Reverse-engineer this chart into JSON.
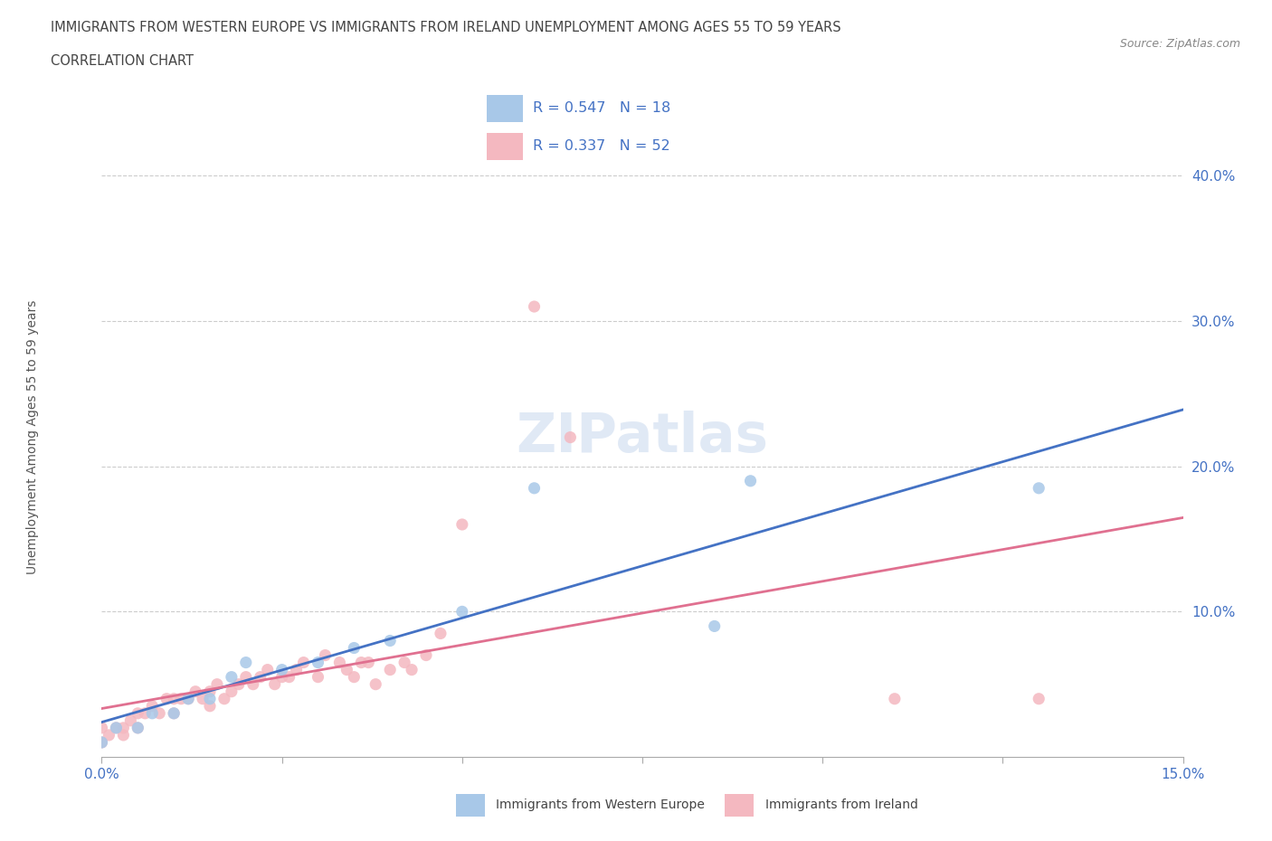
{
  "title_line1": "IMMIGRANTS FROM WESTERN EUROPE VS IMMIGRANTS FROM IRELAND UNEMPLOYMENT AMONG AGES 55 TO 59 YEARS",
  "title_line2": "CORRELATION CHART",
  "source": "Source: ZipAtlas.com",
  "ylabel": "Unemployment Among Ages 55 to 59 years",
  "xlim": [
    0.0,
    0.15
  ],
  "ylim": [
    0.0,
    0.44
  ],
  "xticks": [
    0.0,
    0.025,
    0.05,
    0.075,
    0.1,
    0.125,
    0.15
  ],
  "xtick_labels": [
    "0.0%",
    "",
    "",
    "",
    "",
    "",
    "15.0%"
  ],
  "yticks": [
    0.1,
    0.2,
    0.3,
    0.4
  ],
  "ytick_labels": [
    "10.0%",
    "20.0%",
    "30.0%",
    "40.0%"
  ],
  "r_western": 0.547,
  "n_western": 18,
  "r_ireland": 0.337,
  "n_ireland": 52,
  "color_western": "#a8c8e8",
  "color_ireland": "#f4b8c0",
  "line_color_western": "#4472c4",
  "line_color_ireland": "#e07090",
  "western_x": [
    0.0,
    0.002,
    0.005,
    0.007,
    0.01,
    0.012,
    0.015,
    0.018,
    0.02,
    0.025,
    0.03,
    0.035,
    0.04,
    0.05,
    0.06,
    0.085,
    0.09,
    0.13
  ],
  "western_y": [
    0.01,
    0.02,
    0.02,
    0.03,
    0.03,
    0.04,
    0.04,
    0.055,
    0.065,
    0.06,
    0.065,
    0.075,
    0.08,
    0.1,
    0.185,
    0.09,
    0.19,
    0.185
  ],
  "ireland_x": [
    0.0,
    0.0,
    0.001,
    0.002,
    0.003,
    0.003,
    0.004,
    0.005,
    0.005,
    0.006,
    0.007,
    0.008,
    0.009,
    0.01,
    0.01,
    0.011,
    0.012,
    0.013,
    0.014,
    0.015,
    0.015,
    0.016,
    0.017,
    0.018,
    0.019,
    0.02,
    0.021,
    0.022,
    0.023,
    0.024,
    0.025,
    0.026,
    0.027,
    0.028,
    0.03,
    0.031,
    0.033,
    0.034,
    0.035,
    0.036,
    0.037,
    0.038,
    0.04,
    0.042,
    0.043,
    0.045,
    0.047,
    0.05,
    0.06,
    0.065,
    0.11,
    0.13
  ],
  "ireland_y": [
    0.01,
    0.02,
    0.015,
    0.02,
    0.015,
    0.02,
    0.025,
    0.02,
    0.03,
    0.03,
    0.035,
    0.03,
    0.04,
    0.03,
    0.04,
    0.04,
    0.04,
    0.045,
    0.04,
    0.035,
    0.045,
    0.05,
    0.04,
    0.045,
    0.05,
    0.055,
    0.05,
    0.055,
    0.06,
    0.05,
    0.055,
    0.055,
    0.06,
    0.065,
    0.055,
    0.07,
    0.065,
    0.06,
    0.055,
    0.065,
    0.065,
    0.05,
    0.06,
    0.065,
    0.06,
    0.07,
    0.085,
    0.16,
    0.31,
    0.22,
    0.04,
    0.04
  ]
}
